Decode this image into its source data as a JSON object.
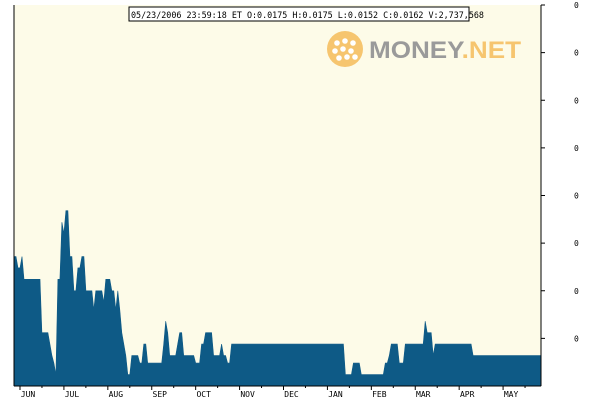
{
  "quote_box": {
    "text": "05/23/2006 23:59:18 ET  O:0.0175 H:0.0175 L:0.0152 C:0.0162 V:2,737,568"
  },
  "logo": {
    "word_money": "MONEY",
    "word_net": ".NET"
  },
  "colors": {
    "plot_background": "#fdfbe8",
    "area_fill": "#0e5a86",
    "axis": "#000000",
    "quote_border": "#000000",
    "logo_orange": "#f6c56f",
    "logo_grey": "#9a9a9a"
  },
  "chart_data": {
    "type": "area",
    "title": "",
    "xlabel": "",
    "ylabel": "",
    "x_tick_labels": [
      "JUN",
      "JUL",
      "AUG",
      "SEP",
      "OCT",
      "NOV",
      "DEC",
      "JAN",
      "FEB",
      "MAR",
      "APR",
      "MAY"
    ],
    "y_tick_labels": [
      "0",
      "0",
      "0",
      "0",
      "0",
      "0",
      "0",
      "0"
    ],
    "ylim": [
      0,
      100
    ],
    "grid": false,
    "series": [
      {
        "index": [
          0,
          1,
          2,
          3,
          4,
          5,
          6,
          7,
          8,
          9,
          10,
          11,
          12,
          13,
          14,
          15,
          16,
          17,
          18,
          19,
          20,
          21,
          22,
          23,
          24,
          25,
          26,
          27,
          28,
          29,
          30,
          31,
          32,
          33,
          34,
          35,
          36,
          37,
          38,
          39,
          40,
          41,
          42,
          43,
          44,
          45,
          46,
          47,
          48,
          49,
          50,
          51,
          52,
          53,
          54,
          55,
          56,
          57,
          58,
          59,
          60,
          61,
          62,
          63,
          64,
          65,
          66,
          67,
          68,
          69,
          70,
          71,
          72,
          73,
          74,
          75,
          76,
          77,
          78,
          79,
          80,
          81,
          82,
          83,
          84,
          85,
          86,
          87,
          88,
          89,
          90,
          91,
          92,
          93,
          94,
          95,
          96,
          97,
          98,
          99,
          100,
          101,
          102,
          103,
          104,
          105,
          106,
          107,
          108,
          109,
          110,
          111,
          112,
          113,
          114,
          115,
          116,
          117,
          118,
          119,
          120,
          121,
          122,
          123,
          124,
          125,
          126,
          127,
          128,
          129,
          130,
          131,
          132,
          133,
          134,
          135,
          136,
          137,
          138,
          139,
          140,
          141,
          142,
          143,
          144,
          145,
          146,
          147,
          148,
          149,
          150,
          151,
          152,
          153,
          154,
          155,
          156,
          157,
          158,
          159,
          160,
          161,
          162,
          163,
          164,
          165,
          166,
          167,
          168,
          169,
          170,
          171,
          172,
          173,
          174,
          175,
          176,
          177,
          178,
          179,
          180,
          181,
          182,
          183,
          184,
          185,
          186,
          187,
          188,
          189,
          190,
          191,
          192,
          193,
          194,
          195,
          196,
          197,
          198,
          199,
          200,
          201,
          202,
          203,
          204,
          205,
          206,
          207,
          208,
          209,
          210,
          211,
          212,
          213,
          214,
          215,
          216,
          217,
          218,
          219,
          220,
          221,
          222,
          223,
          224,
          225,
          226,
          227,
          228,
          229,
          230,
          231,
          232,
          233,
          234,
          235,
          236,
          237,
          238,
          239,
          240,
          241,
          242,
          243,
          244,
          245,
          246,
          247,
          248,
          249,
          250,
          251,
          252,
          253,
          254
        ],
        "values": [
          34,
          34,
          31,
          31,
          34,
          28,
          28,
          28,
          28,
          28,
          28,
          28,
          28,
          28,
          14,
          14,
          14,
          14,
          11,
          8,
          6,
          3,
          28,
          28,
          43,
          40,
          46,
          46,
          34,
          34,
          25,
          25,
          31,
          31,
          34,
          34,
          25,
          25,
          25,
          25,
          20,
          25,
          25,
          25,
          25,
          22,
          28,
          28,
          28,
          25,
          25,
          20,
          25,
          20,
          14,
          11,
          8,
          3,
          3,
          8,
          8,
          8,
          8,
          6,
          6,
          11,
          11,
          6,
          6,
          6,
          6,
          6,
          6,
          6,
          6,
          11,
          17,
          14,
          8,
          8,
          8,
          8,
          11,
          14,
          14,
          8,
          8,
          8,
          8,
          8,
          8,
          6,
          6,
          6,
          11,
          11,
          14,
          14,
          14,
          14,
          8,
          8,
          8,
          8,
          11,
          8,
          8,
          6,
          6,
          11,
          11,
          11,
          11,
          11,
          11,
          11,
          11,
          11,
          11,
          11,
          11,
          11,
          11,
          11,
          11,
          11,
          11,
          11,
          11,
          11,
          11,
          11,
          11,
          11,
          11,
          11,
          11,
          11,
          11,
          11,
          11,
          11,
          11,
          11,
          11,
          11,
          11,
          11,
          11,
          11,
          11,
          11,
          11,
          11,
          11,
          11,
          11,
          11,
          11,
          11,
          11,
          11,
          11,
          11,
          11,
          11,
          3,
          3,
          3,
          3,
          6,
          6,
          6,
          6,
          3,
          3,
          3,
          3,
          3,
          3,
          3,
          3,
          3,
          3,
          3,
          3,
          6,
          6,
          8,
          11,
          11,
          11,
          11,
          6,
          6,
          6,
          11,
          11,
          11,
          11,
          11,
          11,
          11,
          11,
          11,
          11,
          17,
          14,
          14,
          14,
          8,
          11,
          11,
          11,
          11,
          11,
          11,
          11,
          11,
          11,
          11,
          11,
          11,
          11,
          11,
          11,
          11,
          11,
          11,
          11,
          8,
          8,
          8,
          8,
          8,
          8,
          8,
          8,
          8,
          8,
          8,
          8,
          8,
          8,
          8,
          8,
          8,
          8,
          8,
          8,
          8,
          8,
          8,
          8,
          8,
          8,
          8,
          8,
          8,
          8,
          8,
          8,
          8,
          8,
          8
        ]
      }
    ]
  }
}
